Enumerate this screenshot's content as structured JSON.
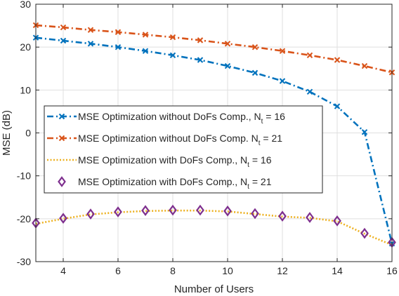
{
  "chart_data": {
    "type": "line",
    "title": "",
    "xlabel": "Number of Users",
    "ylabel": "MSE (dB)",
    "xlim": [
      3,
      16
    ],
    "ylim": [
      -30,
      30
    ],
    "x_ticks": [
      "4",
      "6",
      "8",
      "10",
      "12",
      "14",
      "16"
    ],
    "y_ticks": [
      "-30",
      "-20",
      "-10",
      "0",
      "10",
      "20",
      "30"
    ],
    "grid": true,
    "legend_position": "center-left",
    "x": [
      3,
      4,
      5,
      6,
      7,
      8,
      9,
      10,
      11,
      12,
      13,
      14,
      15,
      16
    ],
    "series": [
      {
        "name": "MSE Optimization without DoFs Comp., N",
        "name_sub": "t",
        "name_tail": " = 16",
        "color": "#0072BD",
        "line": "dashdot",
        "marker": "x",
        "values": [
          22.2,
          21.5,
          20.8,
          20.0,
          19.1,
          18.1,
          17.0,
          15.6,
          14.0,
          12.1,
          9.6,
          6.2,
          0.2,
          -25.8
        ]
      },
      {
        "name": "MSE Optimization without DoFs Comp. N",
        "name_sub": "t",
        "name_tail": " = 21",
        "color": "#D95319",
        "line": "dashdot",
        "marker": "x",
        "values": [
          25.1,
          24.6,
          24.0,
          23.5,
          22.9,
          22.3,
          21.6,
          20.8,
          20.0,
          19.1,
          18.1,
          17.0,
          15.6,
          14.1
        ]
      },
      {
        "name": "MSE Optimization with DoFs Comp., N",
        "name_sub": "t",
        "name_tail": " = 16",
        "color": "#EDB120",
        "line": "dotted",
        "marker": "none",
        "values": [
          -21.2,
          -20.0,
          -19.0,
          -18.5,
          -18.2,
          -18.1,
          -18.1,
          -18.3,
          -18.9,
          -19.5,
          -19.8,
          -20.6,
          -23.5,
          -26.1
        ]
      },
      {
        "name": "MSE Optimization with DoFs Comp., N",
        "name_sub": "t",
        "name_tail": " = 21",
        "color": "#7E2F8E",
        "line": "none",
        "marker": "diamond",
        "values": [
          -21.0,
          -19.9,
          -18.9,
          -18.4,
          -18.1,
          -18.0,
          -18.0,
          -18.2,
          -18.8,
          -19.4,
          -19.7,
          -20.5,
          -23.4,
          -25.5
        ]
      }
    ]
  }
}
